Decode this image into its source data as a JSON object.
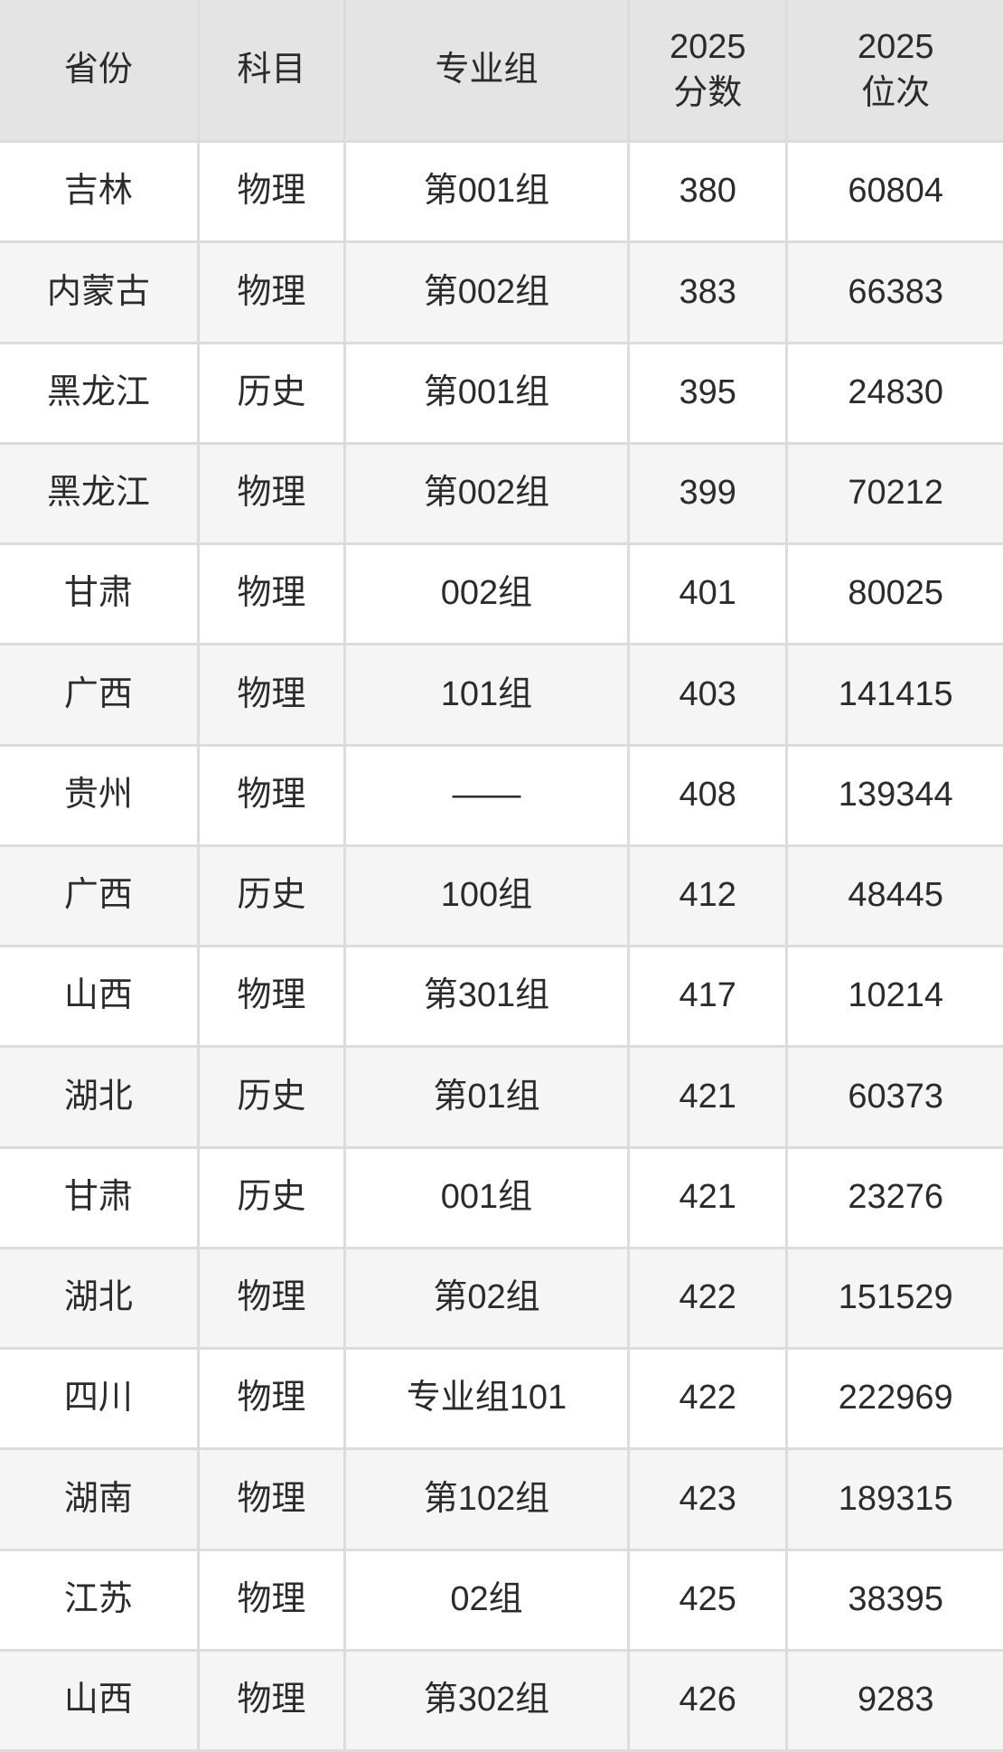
{
  "chart_data": {
    "type": "table",
    "title": "",
    "columns": [
      "省份",
      "科目",
      "专业组",
      "2025\n分数",
      "2025\n位次"
    ],
    "rows": [
      [
        "吉林",
        "物理",
        "第001组",
        "380",
        "60804"
      ],
      [
        "内蒙古",
        "物理",
        "第002组",
        "383",
        "66383"
      ],
      [
        "黑龙江",
        "历史",
        "第001组",
        "395",
        "24830"
      ],
      [
        "黑龙江",
        "物理",
        "第002组",
        "399",
        "70212"
      ],
      [
        "甘肃",
        "物理",
        "002组",
        "401",
        "80025"
      ],
      [
        "广西",
        "物理",
        "101组",
        "403",
        "141415"
      ],
      [
        "贵州",
        "物理",
        "——",
        "408",
        "139344"
      ],
      [
        "广西",
        "历史",
        "100组",
        "412",
        "48445"
      ],
      [
        "山西",
        "物理",
        "第301组",
        "417",
        "10214"
      ],
      [
        "湖北",
        "历史",
        "第01组",
        "421",
        "60373"
      ],
      [
        "甘肃",
        "历史",
        "001组",
        "421",
        "23276"
      ],
      [
        "湖北",
        "物理",
        "第02组",
        "422",
        "151529"
      ],
      [
        "四川",
        "物理",
        "专业组101",
        "422",
        "222969"
      ],
      [
        "湖南",
        "物理",
        "第102组",
        "423",
        "189315"
      ],
      [
        "江苏",
        "物理",
        "02组",
        "425",
        "38395"
      ],
      [
        "山西",
        "物理",
        "第302组",
        "426",
        "9283"
      ]
    ],
    "layout": {
      "grid": true,
      "striped_rows": true,
      "header_position": "top"
    }
  },
  "colors": {
    "header_bg": "#e4e4e4",
    "row_bg": "#ffffff",
    "row_alt_bg": "#f5f5f5",
    "border": "#dcdcdc",
    "text": "#2b2b2b"
  }
}
